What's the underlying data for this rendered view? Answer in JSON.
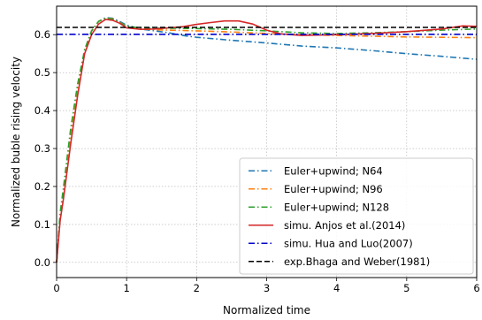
{
  "chart_data": {
    "type": "line",
    "xlabel": "Normalized time",
    "ylabel": "Normalized buble rising velocity",
    "xlim": [
      0,
      6
    ],
    "ylim": [
      -0.04,
      0.675
    ],
    "xticks": [
      0,
      1,
      2,
      3,
      4,
      5,
      6
    ],
    "yticks": [
      0.0,
      0.1,
      0.2,
      0.3,
      0.4,
      0.5,
      0.6
    ],
    "grid": true,
    "legend_position": "lower-right",
    "series": [
      {
        "name": "Euler+upwind; N64",
        "color": "#1f77b4",
        "style": "dashdot",
        "x": [
          0,
          0.05,
          0.1,
          0.2,
          0.3,
          0.4,
          0.5,
          0.6,
          0.7,
          0.8,
          0.9,
          1.0,
          1.2,
          1.4,
          1.6,
          1.8,
          2.0,
          2.5,
          3.0,
          3.5,
          4.0,
          4.5,
          5.0,
          5.5,
          6.0
        ],
        "y": [
          0,
          0.12,
          0.18,
          0.33,
          0.46,
          0.56,
          0.61,
          0.635,
          0.645,
          0.643,
          0.635,
          0.625,
          0.615,
          0.61,
          0.605,
          0.598,
          0.593,
          0.585,
          0.578,
          0.57,
          0.565,
          0.558,
          0.55,
          0.543,
          0.535
        ]
      },
      {
        "name": "Euler+upwind; N96",
        "color": "#ff7f0e",
        "style": "dashdot",
        "x": [
          0,
          0.05,
          0.1,
          0.2,
          0.3,
          0.4,
          0.5,
          0.6,
          0.7,
          0.8,
          0.9,
          1.0,
          1.2,
          1.4,
          1.6,
          2.0,
          2.5,
          3.0,
          3.5,
          4.0,
          4.5,
          5.0,
          5.5,
          6.0
        ],
        "y": [
          0,
          0.12,
          0.18,
          0.33,
          0.46,
          0.56,
          0.61,
          0.635,
          0.643,
          0.642,
          0.633,
          0.622,
          0.615,
          0.613,
          0.612,
          0.61,
          0.607,
          0.603,
          0.6,
          0.598,
          0.596,
          0.594,
          0.593,
          0.592
        ]
      },
      {
        "name": "Euler+upwind; N128",
        "color": "#2ca02c",
        "style": "dashdot",
        "x": [
          0,
          0.05,
          0.1,
          0.2,
          0.3,
          0.4,
          0.5,
          0.6,
          0.7,
          0.8,
          0.9,
          1.0,
          1.2,
          1.4,
          1.6,
          2.0,
          2.5,
          3.0,
          3.5,
          4.0,
          4.5,
          5.0,
          5.5,
          6.0
        ],
        "y": [
          0,
          0.13,
          0.2,
          0.35,
          0.47,
          0.56,
          0.61,
          0.635,
          0.643,
          0.641,
          0.632,
          0.622,
          0.618,
          0.617,
          0.617,
          0.616,
          0.614,
          0.61,
          0.605,
          0.603,
          0.605,
          0.608,
          0.612,
          0.615
        ]
      },
      {
        "name": "simu. Anjos et al.(2014)",
        "color": "#d62728",
        "style": "solid",
        "x": [
          0,
          0.05,
          0.1,
          0.2,
          0.3,
          0.4,
          0.5,
          0.6,
          0.7,
          0.8,
          0.9,
          1.0,
          1.2,
          1.4,
          1.6,
          1.8,
          2.0,
          2.2,
          2.4,
          2.6,
          2.8,
          3.0,
          3.2,
          3.5,
          4.0,
          4.5,
          5.0,
          5.5,
          5.8,
          6.0
        ],
        "y": [
          0,
          0.11,
          0.17,
          0.31,
          0.44,
          0.55,
          0.6,
          0.628,
          0.64,
          0.638,
          0.63,
          0.618,
          0.614,
          0.615,
          0.618,
          0.621,
          0.627,
          0.632,
          0.636,
          0.636,
          0.628,
          0.612,
          0.602,
          0.598,
          0.6,
          0.603,
          0.608,
          0.615,
          0.623,
          0.622
        ]
      },
      {
        "name": "simu. Hua and Luo(2007)",
        "color": "#0000cc",
        "style": "dashdot",
        "x": [
          0,
          6
        ],
        "y": [
          0.601,
          0.601
        ]
      },
      {
        "name": "exp.Bhaga and Weber(1981)",
        "color": "#000000",
        "style": "dashed",
        "x": [
          0,
          6
        ],
        "y": [
          0.619,
          0.619
        ]
      }
    ]
  }
}
